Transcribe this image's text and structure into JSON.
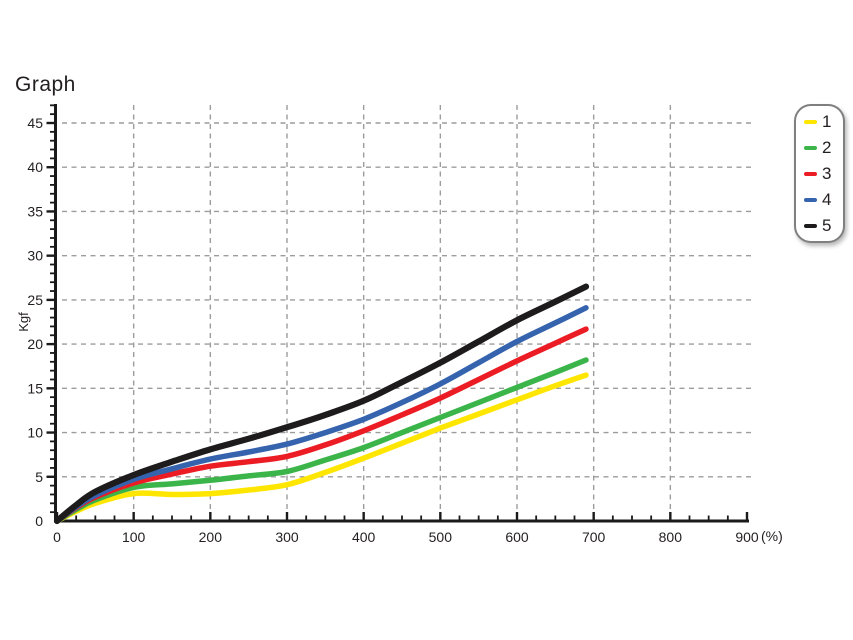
{
  "chart_data": {
    "type": "line",
    "title": "Graph",
    "ylabel": "Kgf",
    "x_unit_label": "(%)",
    "xlim": [
      0,
      900
    ],
    "ylim": [
      0,
      45
    ],
    "x_ticks": [
      0,
      100,
      200,
      300,
      400,
      500,
      600,
      700,
      800,
      900
    ],
    "x_minor_step": 25,
    "y_ticks": [
      0,
      5,
      10,
      15,
      20,
      25,
      30,
      35,
      40,
      45
    ],
    "y_minor_step": 1,
    "grid": "dashed",
    "grid_color": "#9c9c9c",
    "axis_color": "#1a1a1a",
    "text_color": "#231f20",
    "legend_position": "top-right",
    "x": [
      0,
      25,
      50,
      100,
      150,
      200,
      250,
      300,
      350,
      400,
      450,
      500,
      550,
      600,
      650,
      690
    ],
    "series": [
      {
        "name": "1",
        "color": "#ffe600",
        "line_width": 5.5,
        "values": [
          0,
          1.1,
          2.0,
          3.1,
          3.0,
          3.1,
          3.5,
          4.1,
          5.5,
          7.1,
          8.8,
          10.5,
          12.1,
          13.7,
          15.3,
          16.5
        ]
      },
      {
        "name": "2",
        "color": "#3bb54a",
        "line_width": 5.5,
        "values": [
          0,
          1.3,
          2.4,
          3.8,
          4.2,
          4.6,
          5.1,
          5.6,
          6.9,
          8.3,
          10.0,
          11.7,
          13.4,
          15.1,
          16.8,
          18.2
        ]
      },
      {
        "name": "3",
        "color": "#ec1c24",
        "line_width": 5.5,
        "values": [
          0,
          1.5,
          2.7,
          4.3,
          5.3,
          6.2,
          6.7,
          7.3,
          8.6,
          10.2,
          12.0,
          13.9,
          16.0,
          18.1,
          20.1,
          21.7
        ]
      },
      {
        "name": "4",
        "color": "#3563ae",
        "line_width": 5.5,
        "values": [
          0,
          1.6,
          2.9,
          4.7,
          5.9,
          7.0,
          7.8,
          8.7,
          10.0,
          11.5,
          13.4,
          15.5,
          17.9,
          20.3,
          22.4,
          24.1
        ]
      },
      {
        "name": "5",
        "color": "#1d1b1c",
        "line_width": 6.2,
        "values": [
          0,
          1.8,
          3.3,
          5.2,
          6.7,
          8.1,
          9.3,
          10.6,
          12.0,
          13.6,
          15.7,
          17.9,
          20.3,
          22.7,
          24.8,
          26.5
        ]
      }
    ]
  }
}
